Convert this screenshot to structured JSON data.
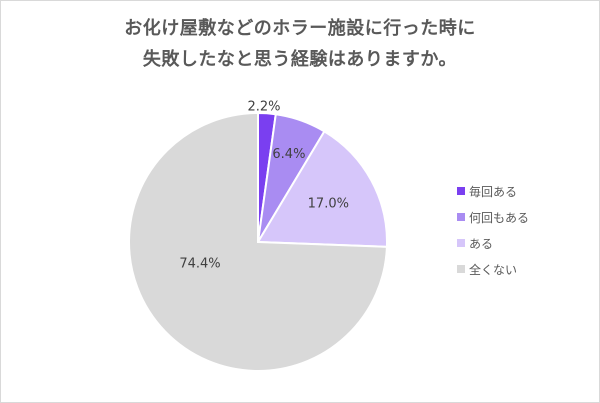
{
  "chart_data": {
    "type": "pie",
    "title_lines": [
      "お化け屋敷などのホラー施設に行った時に",
      "失敗したなと思う経験はありますか。"
    ],
    "slices": [
      {
        "label": "毎回ある",
        "value": 2.2,
        "value_label": "2.2%",
        "color": "#7a3ff0"
      },
      {
        "label": "何回もある",
        "value": 6.4,
        "value_label": "6.4%",
        "color": "#a98cf2"
      },
      {
        "label": "ある",
        "value": 17.0,
        "value_label": "17.0%",
        "color": "#d6c6fa"
      },
      {
        "label": "全くない",
        "value": 74.4,
        "value_label": "74.4%",
        "color": "#d9d9d9"
      }
    ],
    "legend_position": "right",
    "start_angle": "12 o'clock",
    "direction": "clockwise"
  }
}
